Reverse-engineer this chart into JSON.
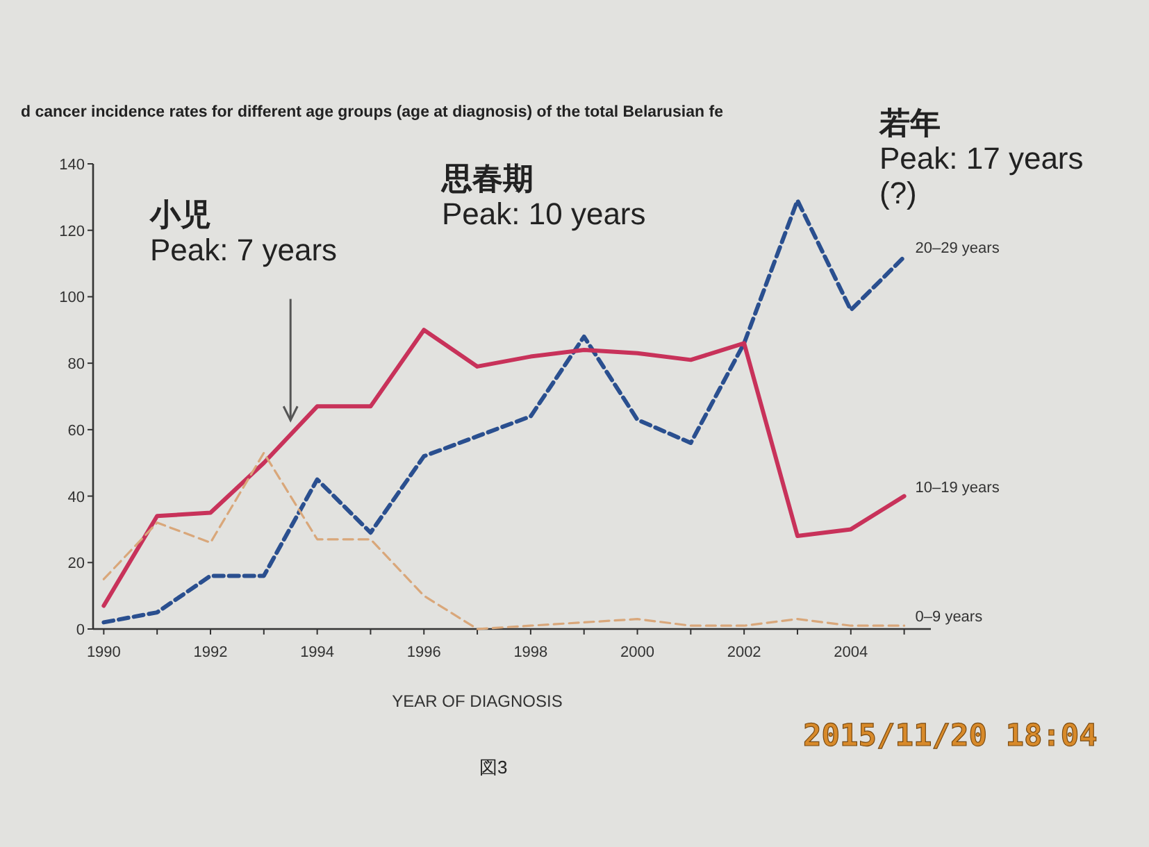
{
  "chart_data": {
    "type": "line",
    "title": "d cancer incidence rates for different age groups (age at diagnosis) of the total Belarusian fe",
    "xlabel": "YEAR OF DIAGNOSIS",
    "x": [
      1990,
      1991,
      1992,
      1993,
      1994,
      1995,
      1996,
      1997,
      1998,
      1999,
      2000,
      2001,
      2002,
      2003,
      2004,
      2005
    ],
    "series": [
      {
        "name": "20–29 years",
        "color": "#2a4f8f",
        "line_style": "dashed",
        "values": [
          2,
          5,
          16,
          16,
          45,
          29,
          52,
          58,
          64,
          88,
          63,
          56,
          86,
          129,
          96,
          112
        ]
      },
      {
        "name": "10–19 years",
        "color": "#c8325a",
        "line_style": "solid",
        "values": [
          7,
          34,
          35,
          50,
          67,
          67,
          90,
          79,
          82,
          84,
          83,
          81,
          86,
          28,
          30,
          40
        ]
      },
      {
        "name": "0–9 years",
        "color": "#d9a77a",
        "line_style": "dashed",
        "values": [
          15,
          32,
          26,
          53,
          27,
          27,
          10,
          0,
          1,
          2,
          3,
          1,
          1,
          3,
          1,
          1
        ]
      }
    ],
    "xlim": [
      1989.8,
      2005.5
    ],
    "ylim": [
      0,
      140
    ],
    "xticks": [
      1990,
      {
        "value": 1991,
        "label": null
      },
      1992,
      {
        "value": 1993,
        "label": null
      },
      1994,
      {
        "value": 1995,
        "label": null
      },
      1996,
      {
        "value": 1997,
        "label": null
      },
      1998,
      {
        "value": 1999,
        "label": null
      },
      2000,
      {
        "value": 2001,
        "label": null
      },
      2002,
      {
        "value": 2003,
        "label": null
      },
      2004,
      {
        "value": 2005,
        "label": null
      }
    ],
    "yticks": [
      0,
      20,
      40,
      60,
      80,
      100,
      120,
      140
    ],
    "annotations": [
      {
        "text": "小児\nPeak: 7 years",
        "x": 1993.5,
        "y": 62
      },
      "思春期\nPeak: 10 years",
      "若年\nPeak: 17 years\n(?)",
      "2015/11/20 18:04",
      "図3"
    ]
  }
}
